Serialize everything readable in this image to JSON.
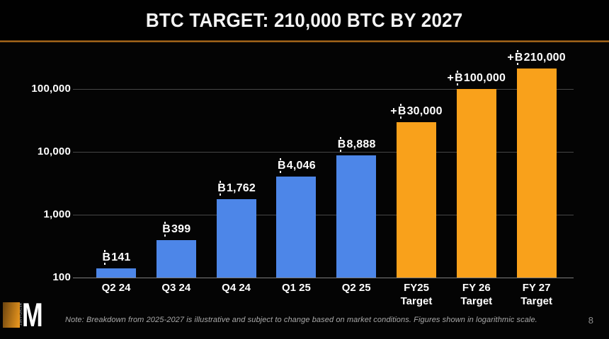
{
  "header": {
    "title": "BTC TARGET: 210,000 BTC BY 2027"
  },
  "chart_data": {
    "type": "bar",
    "title": "BTC TARGET: 210,000 BTC BY 2027",
    "scale": "logarithmic",
    "categories": [
      "Q2 24",
      "Q3 24",
      "Q4 24",
      "Q1 25",
      "Q2 25",
      "FY25\nTarget",
      "FY 26\nTarget",
      "FY 27\nTarget"
    ],
    "values": [
      141,
      399,
      1762,
      4046,
      8888,
      30000,
      100000,
      210000
    ],
    "bar_labels": [
      "₿141",
      "₿399",
      "₿1,762",
      "₿4,046",
      "₿8,888",
      "+₿30,000",
      "+₿100,000",
      "+₿210,000"
    ],
    "bar_colors": [
      "#4d86e8",
      "#4d86e8",
      "#4d86e8",
      "#4d86e8",
      "#4d86e8",
      "#f9a11b",
      "#f9a11b",
      "#f9a11b"
    ],
    "series_colors": {
      "actual_holdings": "#4d86e8",
      "targets": "#f9a11b"
    },
    "y_ticks": {
      "labels": [
        "100,000",
        "10,000",
        "1,000",
        "100"
      ],
      "values": [
        100000,
        10000,
        1000,
        100
      ]
    },
    "ylim": [
      100,
      400000
    ],
    "xlabel": "",
    "ylabel": "",
    "grid": true,
    "legend": "none"
  },
  "footer": {
    "note": "Note: Breakdown from 2025-2027 is illustrative and subject to change based on market conditions. Figures shown in logarithmic scale.",
    "page_number": "8",
    "logo": {
      "letter": "M",
      "vertical_text": "METAPLANET"
    }
  }
}
